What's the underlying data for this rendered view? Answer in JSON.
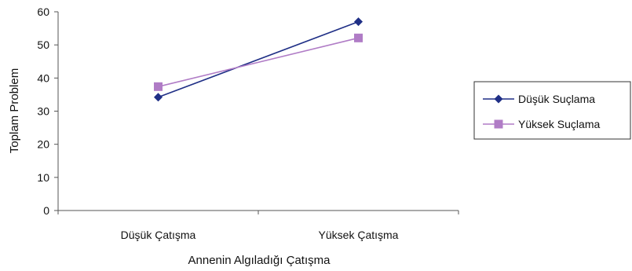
{
  "chart_data": {
    "type": "line",
    "title": "",
    "xlabel": "Annenin Algıladığı Çatışma",
    "ylabel": "Toplam Problem",
    "categories": [
      "Düşük Çatışma",
      "Yüksek Çatışma"
    ],
    "ylim": [
      0,
      60
    ],
    "yticks": [
      "0",
      "10",
      "20",
      "30",
      "40",
      "50",
      "60"
    ],
    "grid": false,
    "legend_position": "right",
    "series": [
      {
        "name": "Düşük Suçlama",
        "values": [
          34.2,
          57.0
        ],
        "color": "#1f2f86",
        "marker": "diamond"
      },
      {
        "name": "Yüksek Suçlama",
        "values": [
          37.4,
          52.1
        ],
        "color": "#b07cc6",
        "marker": "square"
      }
    ]
  }
}
